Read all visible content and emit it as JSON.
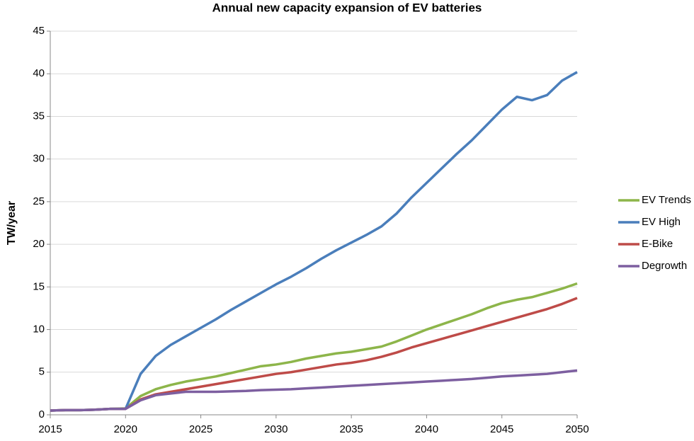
{
  "chart_data": {
    "type": "line",
    "title": "Annual new capacity expansion of EV batteries",
    "y_label": "TW/year",
    "x": [
      2015,
      2016,
      2017,
      2018,
      2019,
      2020,
      2021,
      2022,
      2023,
      2024,
      2025,
      2026,
      2027,
      2028,
      2029,
      2030,
      2031,
      2032,
      2033,
      2034,
      2035,
      2036,
      2037,
      2038,
      2039,
      2040,
      2041,
      2042,
      2043,
      2044,
      2045,
      2046,
      2047,
      2048,
      2049,
      2050
    ],
    "series": [
      {
        "name": "EV Trends",
        "color": "#8db54a",
        "values": [
          0.5,
          0.55,
          0.55,
          0.6,
          0.7,
          0.75,
          2.2,
          3.0,
          3.5,
          3.9,
          4.2,
          4.5,
          4.9,
          5.3,
          5.7,
          5.9,
          6.2,
          6.6,
          6.9,
          7.2,
          7.4,
          7.7,
          8.0,
          8.6,
          9.3,
          10.0,
          10.6,
          11.2,
          11.8,
          12.5,
          13.1,
          13.5,
          13.8,
          14.3,
          14.8,
          15.4
        ]
      },
      {
        "name": "EV High",
        "color": "#4a7ebb",
        "values": [
          0.5,
          0.55,
          0.55,
          0.6,
          0.7,
          0.7,
          4.8,
          6.9,
          8.2,
          9.2,
          10.2,
          11.2,
          12.3,
          13.3,
          14.3,
          15.3,
          16.2,
          17.2,
          18.3,
          19.3,
          20.2,
          21.1,
          22.1,
          23.6,
          25.5,
          27.2,
          28.9,
          30.6,
          32.2,
          34.0,
          35.8,
          37.3,
          36.9,
          37.5,
          39.2,
          40.2
        ]
      },
      {
        "name": "E-Bike",
        "color": "#be4b48",
        "values": [
          0.5,
          0.55,
          0.55,
          0.6,
          0.7,
          0.7,
          1.8,
          2.4,
          2.7,
          3.0,
          3.3,
          3.6,
          3.9,
          4.2,
          4.5,
          4.8,
          5.0,
          5.3,
          5.6,
          5.9,
          6.1,
          6.4,
          6.8,
          7.3,
          7.9,
          8.4,
          8.9,
          9.4,
          9.9,
          10.4,
          10.9,
          11.4,
          11.9,
          12.4,
          13.0,
          13.7
        ]
      },
      {
        "name": "Degrowth",
        "color": "#7d5fa0",
        "values": [
          0.5,
          0.55,
          0.55,
          0.6,
          0.7,
          0.7,
          1.7,
          2.3,
          2.5,
          2.7,
          2.7,
          2.7,
          2.75,
          2.8,
          2.9,
          2.95,
          3.0,
          3.1,
          3.2,
          3.3,
          3.4,
          3.5,
          3.6,
          3.7,
          3.8,
          3.9,
          4.0,
          4.1,
          4.2,
          4.35,
          4.5,
          4.6,
          4.7,
          4.8,
          5.0,
          5.2
        ]
      }
    ],
    "xlim": [
      2015,
      2050
    ],
    "xticks": [
      2015,
      2020,
      2025,
      2030,
      2035,
      2040,
      2045,
      2050
    ],
    "ylim": [
      0,
      45
    ],
    "yticks": [
      0,
      5,
      10,
      15,
      20,
      25,
      30,
      35,
      40,
      45
    ],
    "grid": true,
    "legend": "right"
  }
}
